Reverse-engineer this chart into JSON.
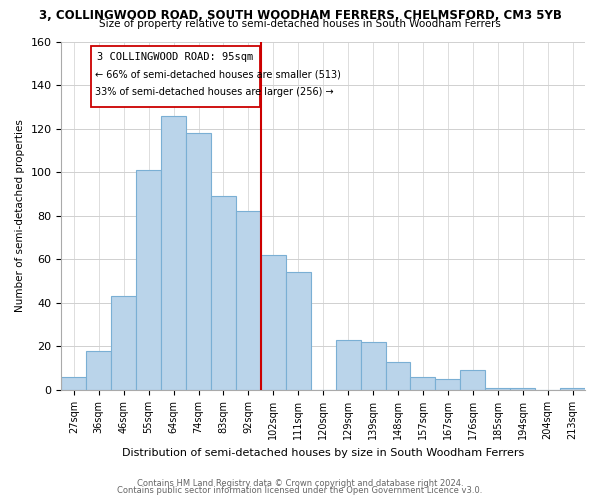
{
  "title": "3, COLLINGWOOD ROAD, SOUTH WOODHAM FERRERS, CHELMSFORD, CM3 5YB",
  "subtitle": "Size of property relative to semi-detached houses in South Woodham Ferrers",
  "xlabel": "Distribution of semi-detached houses by size in South Woodham Ferrers",
  "ylabel": "Number of semi-detached properties",
  "categories": [
    "27sqm",
    "36sqm",
    "46sqm",
    "55sqm",
    "64sqm",
    "74sqm",
    "83sqm",
    "92sqm",
    "102sqm",
    "111sqm",
    "120sqm",
    "129sqm",
    "139sqm",
    "148sqm",
    "157sqm",
    "167sqm",
    "176sqm",
    "185sqm",
    "194sqm",
    "204sqm",
    "213sqm"
  ],
  "values": [
    6,
    18,
    43,
    101,
    126,
    118,
    89,
    82,
    62,
    54,
    0,
    23,
    22,
    13,
    6,
    5,
    9,
    1,
    1,
    0,
    1
  ],
  "bar_color": "#bad4ea",
  "bar_edge_color": "#7aafd4",
  "annotation_text_line1": "3 COLLINGWOOD ROAD: 95sqm",
  "annotation_text_line2": "← 66% of semi-detached houses are smaller (513)",
  "annotation_text_line3": "33% of semi-detached houses are larger (256) →",
  "annotation_box_color": "#ffffff",
  "annotation_border_color": "#cc0000",
  "red_line_bin": 7.5,
  "ylim": [
    0,
    160
  ],
  "yticks": [
    0,
    20,
    40,
    60,
    80,
    100,
    120,
    140,
    160
  ],
  "footer_line1": "Contains HM Land Registry data © Crown copyright and database right 2024.",
  "footer_line2": "Contains public sector information licensed under the Open Government Licence v3.0.",
  "background_color": "#ffffff",
  "grid_color": "#d0d0d0"
}
